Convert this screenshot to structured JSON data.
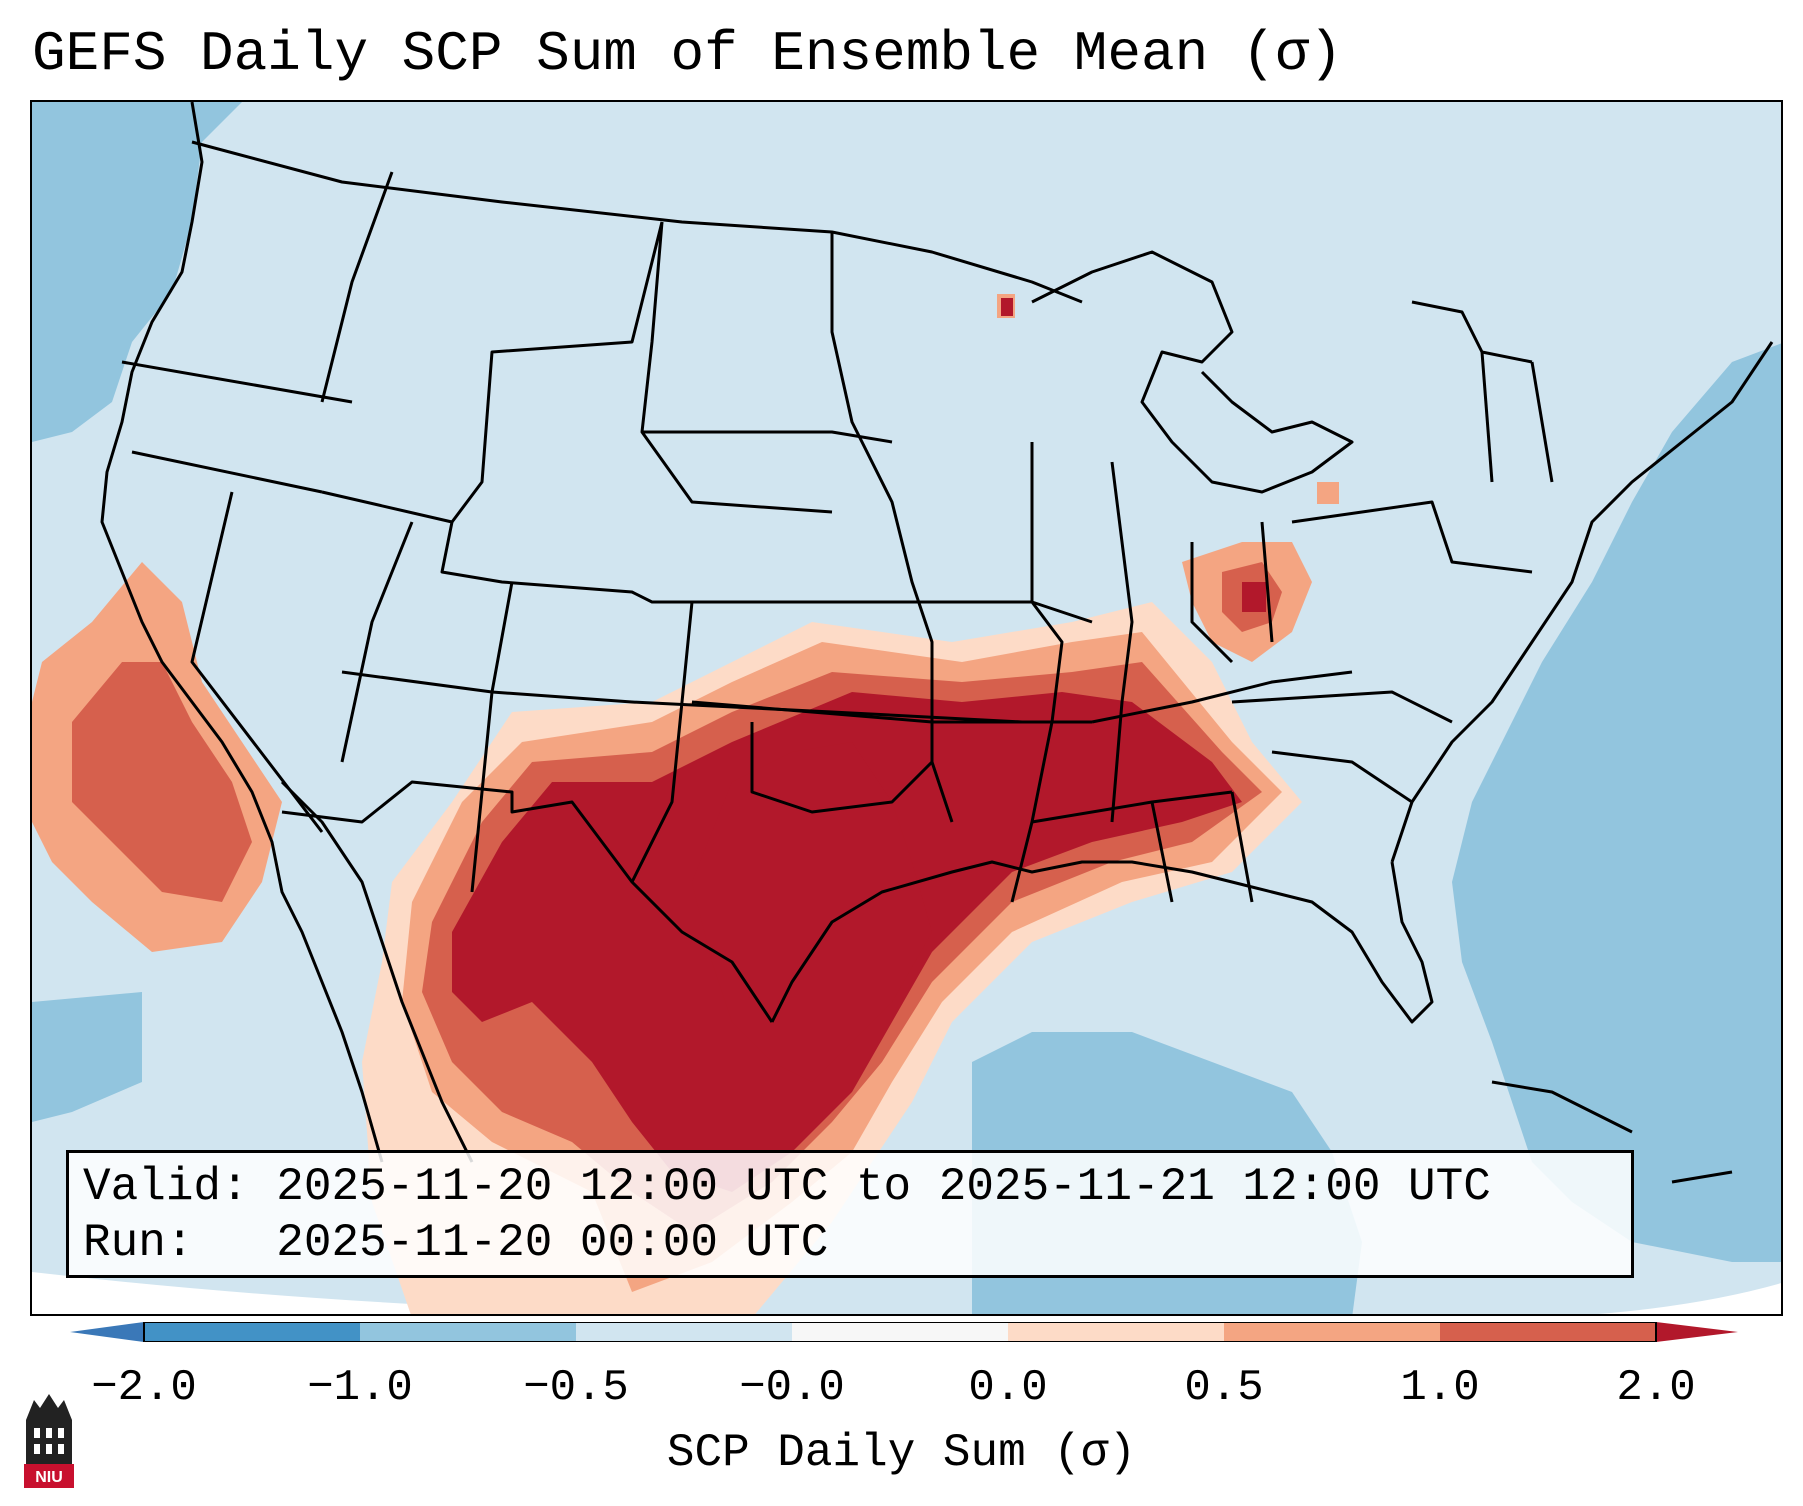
{
  "title": "GEFS Daily SCP Sum of Ensemble Mean (σ)",
  "info": {
    "valid_label": "Valid:",
    "valid_value": "2025-11-20 12:00 UTC to 2025-11-21 12:00 UTC",
    "run_label": "Run:",
    "run_value": "2025-11-20 00:00 UTC"
  },
  "colorbar": {
    "label": "SCP Daily Sum (σ)",
    "ticks": [
      "−2.0",
      "−1.0",
      "−0.5",
      "−0.0",
      "0.0",
      "0.5",
      "1.0",
      "2.0"
    ],
    "colors": {
      "under": "#3a78b8",
      "neg2_neg1": "#4292c6",
      "neg1_neg05": "#92c5de",
      "neg05_0": "#d1e5f0",
      "zero": "#f7f7f7",
      "p0_05": "#fddbc7",
      "p05_1": "#f4a582",
      "p1_2": "#d6604d",
      "over": "#b2182b"
    }
  },
  "map_colors": {
    "land_neutral": "#d1e5f0",
    "ocean": "#92c5de",
    "high": "#b2182b",
    "mid": "#d6604d",
    "low": "#f4a582",
    "faint": "#fddbc7"
  },
  "logo": {
    "icon": "university-tower-icon",
    "text": "NIU"
  }
}
